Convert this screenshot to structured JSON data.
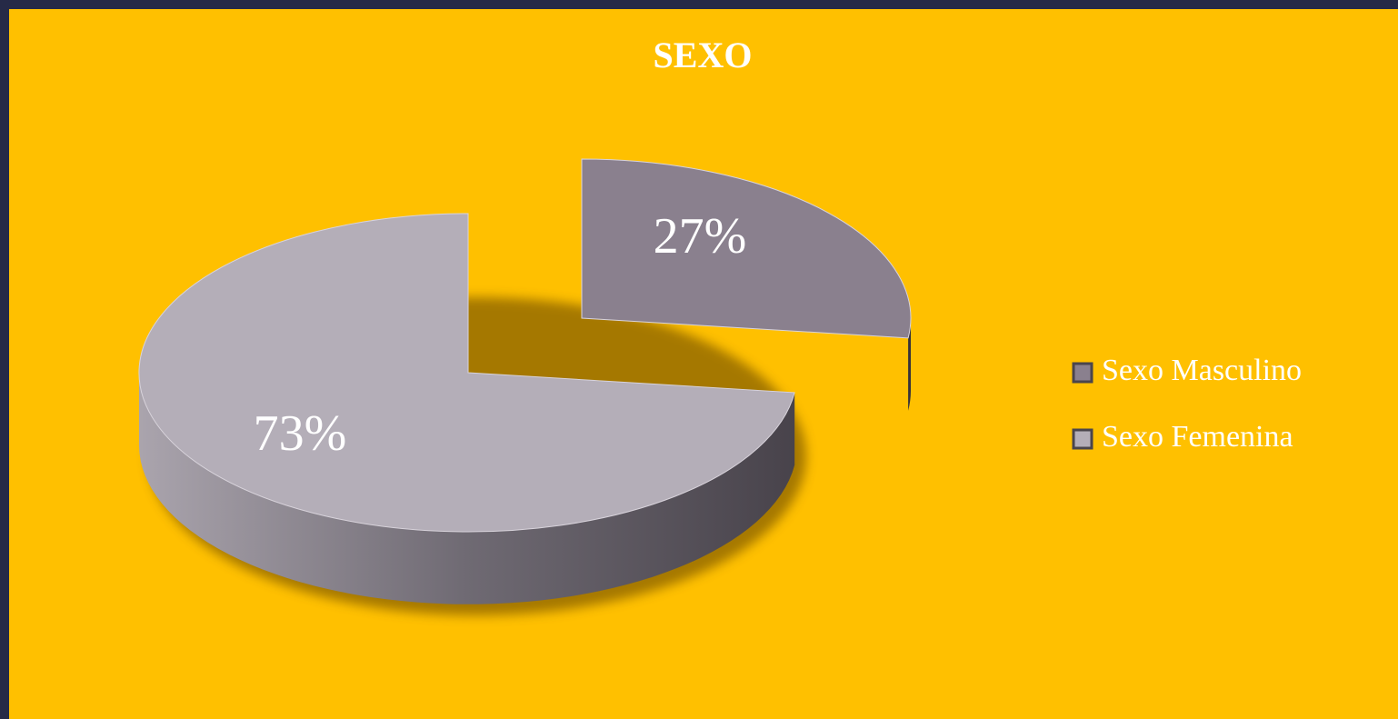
{
  "chart_data": {
    "type": "pie",
    "title": "SEXO",
    "categories": [
      "Sexo Masculino",
      "Sexo Femenina"
    ],
    "values": [
      27,
      73
    ],
    "value_labels": [
      "27%",
      "73%"
    ],
    "colors": [
      "#8a808e",
      "#b4aeb8"
    ],
    "side_colors": [
      "#37323a",
      "#4c474f"
    ],
    "legend": "right"
  }
}
